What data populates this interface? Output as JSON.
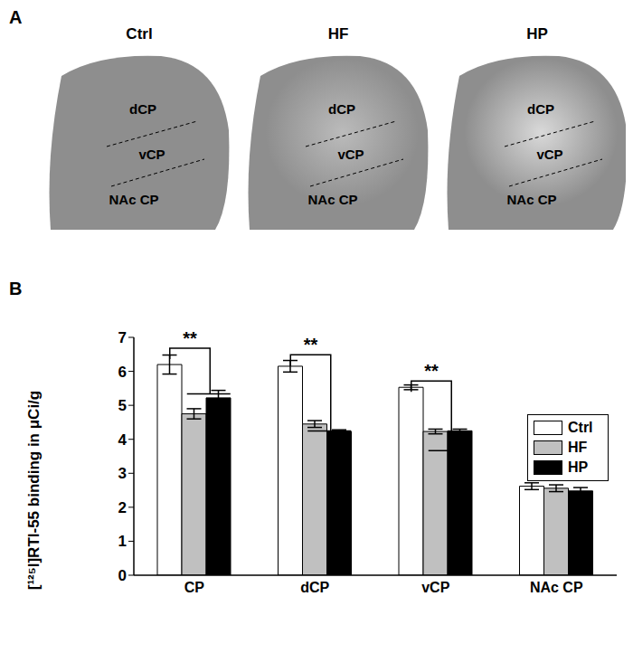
{
  "panel_a": {
    "label": "A",
    "images": [
      {
        "title": "Ctrl",
        "regions": [
          "dCP",
          "vCP",
          "NAc CP"
        ]
      },
      {
        "title": "HF",
        "regions": [
          "dCP",
          "vCP",
          "NAc CP"
        ]
      },
      {
        "title": "HP",
        "regions": [
          "dCP",
          "vCP",
          "NAc CP"
        ]
      }
    ]
  },
  "chart_data": {
    "panel_label": "B",
    "type": "bar",
    "categories": [
      "CP",
      "dCP",
      "vCP",
      "NAc CP"
    ],
    "y_label": "[¹²⁵I]RTI-55 binding in μCi/g",
    "ylim": [
      0,
      7
    ],
    "yticks": [
      0,
      1,
      2,
      3,
      4,
      5,
      6,
      7
    ],
    "grid": false,
    "legend": "upper right",
    "series": [
      {
        "name": "Ctrl",
        "color": "#ffffff",
        "values": [
          6.2,
          6.15,
          5.53,
          2.62
        ],
        "errors": [
          0.28,
          0.17,
          0.07,
          0.1
        ]
      },
      {
        "name": "HF",
        "color": "#c0c0c0",
        "values": [
          4.75,
          4.45,
          4.23,
          2.56
        ],
        "errors": [
          0.15,
          0.1,
          0.07,
          0.1
        ]
      },
      {
        "name": "HP",
        "color": "#000000",
        "values": [
          5.22,
          4.23,
          4.25,
          2.48
        ],
        "errors": [
          0.22,
          0.05,
          0.05,
          0.1
        ]
      }
    ],
    "annotations": [
      {
        "category": "CP",
        "text": "**",
        "y": 6.75,
        "y_group": 5.7
      },
      {
        "category": "dCP",
        "text": "**",
        "y": 6.6,
        "y_group": 4.85
      },
      {
        "category": "vCP",
        "text": "**",
        "y": 6.0,
        "y_group": 4.4
      }
    ]
  }
}
